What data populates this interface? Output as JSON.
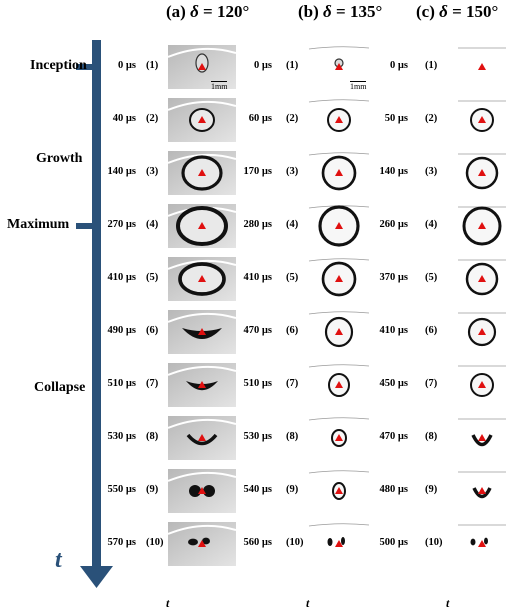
{
  "columns": [
    {
      "id": "a",
      "label": "(a)",
      "delta_symbol": "δ",
      "equals": " = ",
      "angle": "120°"
    },
    {
      "id": "b",
      "label": "(b)",
      "delta_symbol": "δ",
      "equals": " = ",
      "angle": "135°"
    },
    {
      "id": "c",
      "label": "(c)",
      "delta_symbol": "δ",
      "equals": " = ",
      "angle": "150°"
    }
  ],
  "phases": [
    "Inception",
    "Growth",
    "Maximum",
    "Collapse"
  ],
  "axis_label": "t",
  "scale_label": "1mm",
  "frame_indices": [
    "(1)",
    "(2)",
    "(3)",
    "(4)",
    "(5)",
    "(6)",
    "(7)",
    "(8)",
    "(9)",
    "(10)"
  ],
  "times": {
    "a": [
      "0 µs",
      "40 µs",
      "140 µs",
      "270 µs",
      "410 µs",
      "490 µs",
      "510 µs",
      "530 µs",
      "550 µs",
      "570 µs"
    ],
    "b": [
      "0 µs",
      "60 µs",
      "170 µs",
      "280 µs",
      "410 µs",
      "470 µs",
      "510 µs",
      "530 µs",
      "540 µs",
      "560 µs"
    ],
    "c": [
      "0 µs",
      "50 µs",
      "140 µs",
      "260 µs",
      "370 µs",
      "410 µs",
      "450 µs",
      "470 µs",
      "480 µs",
      "500 µs"
    ]
  },
  "colors": {
    "axis": "#2a5179",
    "marker": "#e01010",
    "bubble": "#111111"
  }
}
